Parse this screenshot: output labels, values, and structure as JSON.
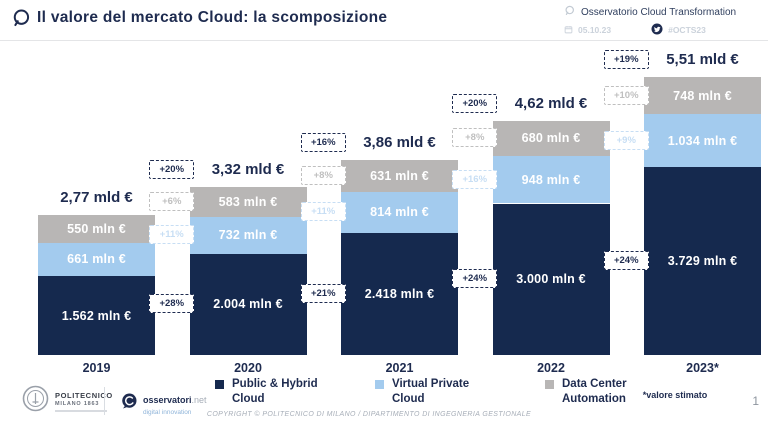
{
  "header": {
    "title": "Il valore del mercato Cloud: la scomposizione",
    "observatory": "Osservatorio Cloud Transformation",
    "date": "05.10.23",
    "hashtag": "#OCTS23"
  },
  "icons": {
    "title_icon": "speech-bubble-circle",
    "observatory_icon": "speech-bubble-circle",
    "date_icon": "calendar",
    "hashtag_icon": "twitter-bird"
  },
  "colors": {
    "navy": "#15294E",
    "light_blue": "#A3CBEE",
    "gray": "#B8B6B5",
    "badge_navy": "#1E2B4F",
    "badge_gray": "#BFBFBF",
    "badge_blue": "#C7DEF4",
    "divider": "#E4E5E7"
  },
  "chart_data": {
    "type": "bar",
    "subtype": "stacked",
    "unit": "mln €",
    "categories": [
      "2019",
      "2020",
      "2021",
      "2022",
      "2023*"
    ],
    "totals": [
      "2,77 mld €",
      "3,32 mld €",
      "3,86 mld €",
      "4,62 mld €",
      "5,51 mld €"
    ],
    "series": [
      {
        "name": "Public & Hybrid Cloud",
        "color": "#15294E",
        "values": [
          1562,
          2004,
          2418,
          3000,
          3729
        ],
        "labels": [
          "1.562 mln €",
          "2.004 mln €",
          "2.418 mln €",
          "3.000 mln €",
          "3.729 mln €"
        ]
      },
      {
        "name": "Virtual Private Cloud",
        "color": "#A3CBEE",
        "values": [
          661,
          732,
          814,
          948,
          1034
        ],
        "labels": [
          "661 mln €",
          "732 mln €",
          "814 mln €",
          "948 mln €",
          "1.034 mln €"
        ]
      },
      {
        "name": "Data Center Automation",
        "color": "#B8B6B5",
        "values": [
          550,
          583,
          631,
          680,
          748
        ],
        "labels": [
          "550 mln €",
          "583 mln €",
          "631 mln €",
          "680 mln €",
          "748 mln €"
        ]
      }
    ],
    "growth_badges": [
      {
        "between": "2019-2020",
        "total": "+20%",
        "data_center_automation": "+6%",
        "virtual_private_cloud": "+11%",
        "public_hybrid_cloud": "+28%"
      },
      {
        "between": "2020-2021",
        "total": "+16%",
        "data_center_automation": "+8%",
        "virtual_private_cloud": "+11%",
        "public_hybrid_cloud": "+21%"
      },
      {
        "between": "2021-2022",
        "total": "+20%",
        "data_center_automation": "+8%",
        "virtual_private_cloud": "+16%",
        "public_hybrid_cloud": "+24%"
      },
      {
        "between": "2022-2023",
        "total": "+19%",
        "data_center_automation": "+10%",
        "virtual_private_cloud": "+9%",
        "public_hybrid_cloud": "+24%"
      }
    ],
    "legend_position": "bottom",
    "grid": false
  },
  "footer": {
    "politecnico_logo": {
      "line1": "POLITECNICO",
      "line2": "MILANO 1863"
    },
    "osservatori_logo": {
      "brand": "osservatori",
      "suffix": ".net",
      "tagline": "digital innovation"
    },
    "copyright": "COPYRIGHT © POLITECNICO DI MILANO / DIPARTIMENTO DI INGEGNERIA GESTIONALE",
    "note": "*valore stimato",
    "page_number": "1"
  }
}
